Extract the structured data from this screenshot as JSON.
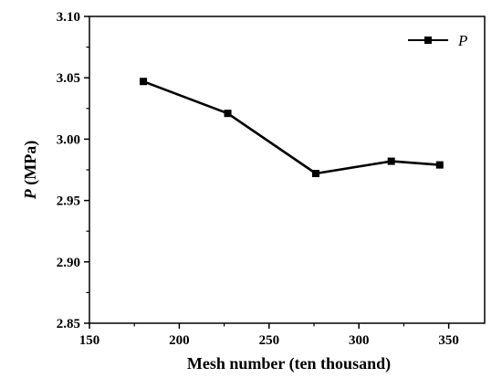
{
  "chart_data": {
    "type": "line",
    "xlabel": "Mesh number (ten thousand)",
    "ylabel_symbol": "P",
    "ylabel_unit": " (MPa)",
    "xlim": [
      150,
      370
    ],
    "ylim": [
      2.85,
      3.1
    ],
    "x_ticks": [
      150,
      200,
      250,
      300,
      350
    ],
    "y_ticks": [
      2.85,
      2.9,
      2.95,
      3.0,
      3.05,
      3.1
    ],
    "x_tick_labels": [
      "150",
      "200",
      "250",
      "300",
      "350"
    ],
    "y_tick_labels": [
      "2.85",
      "2.90",
      "2.95",
      "3.00",
      "3.05",
      "3.10"
    ],
    "grid": false,
    "legend_position": "top-right",
    "series": [
      {
        "name": "P",
        "color": "#000000",
        "marker": "square",
        "x": [
          180,
          227,
          276,
          318,
          345
        ],
        "y": [
          3.047,
          3.021,
          2.972,
          2.982,
          2.979
        ]
      }
    ]
  }
}
